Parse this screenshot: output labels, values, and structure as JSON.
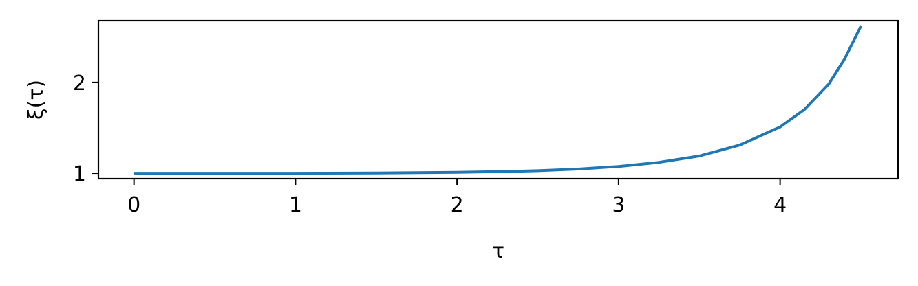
{
  "chart_data": {
    "type": "line",
    "title": "",
    "xlabel": "τ",
    "ylabel": "ξ(τ)",
    "xlim": [
      -0.22,
      4.73
    ],
    "ylim": [
      0.94,
      2.68
    ],
    "xticks": [
      0,
      1,
      2,
      3,
      4
    ],
    "xtick_labels": [
      "0",
      "1",
      "2",
      "3",
      "4"
    ],
    "yticks": [
      1,
      2
    ],
    "ytick_labels": [
      "1",
      "2"
    ],
    "grid": false,
    "legend": "none",
    "series": [
      {
        "color": "#1f77b4",
        "x": [
          0,
          0.5,
          1.0,
          1.5,
          2.0,
          2.25,
          2.5,
          2.75,
          3.0,
          3.25,
          3.5,
          3.75,
          4.0,
          4.15,
          4.3,
          4.4,
          4.5
        ],
        "y": [
          1.0,
          1.0,
          1.0,
          1.003,
          1.01,
          1.017,
          1.028,
          1.046,
          1.075,
          1.12,
          1.19,
          1.31,
          1.51,
          1.7,
          1.98,
          2.26,
          2.62
        ]
      }
    ]
  }
}
